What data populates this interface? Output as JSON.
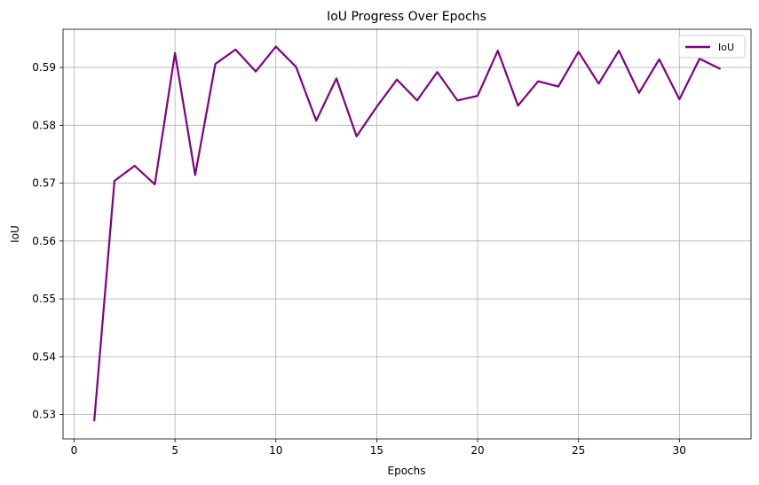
{
  "chart_data": {
    "type": "line",
    "title": "IoU Progress Over Epochs",
    "xlabel": "Epochs",
    "ylabel": "IoU",
    "xlim": [
      -0.55,
      33.55
    ],
    "ylim": [
      0.5258,
      0.5966
    ],
    "xticks": [
      0,
      5,
      10,
      15,
      20,
      25,
      30
    ],
    "yticks": [
      0.53,
      0.54,
      0.55,
      0.56,
      0.57,
      0.58,
      0.59
    ],
    "grid": true,
    "legend_position": "top-right",
    "series": [
      {
        "name": "IoU",
        "color": "#800080",
        "x": [
          1,
          2,
          3,
          4,
          5,
          6,
          7,
          8,
          9,
          10,
          11,
          12,
          13,
          14,
          15,
          16,
          17,
          18,
          19,
          20,
          21,
          22,
          23,
          24,
          25,
          26,
          27,
          28,
          29,
          30,
          31,
          32
        ],
        "y": [
          0.529,
          0.5704,
          0.573,
          0.5698,
          0.5925,
          0.5714,
          0.5906,
          0.5931,
          0.5893,
          0.5936,
          0.5901,
          0.5808,
          0.5881,
          0.5781,
          0.5832,
          0.5879,
          0.5843,
          0.5892,
          0.5843,
          0.5851,
          0.5929,
          0.5834,
          0.5876,
          0.5867,
          0.5927,
          0.5872,
          0.5929,
          0.5856,
          0.5914,
          0.5845,
          0.5915,
          0.5898
        ]
      }
    ]
  }
}
